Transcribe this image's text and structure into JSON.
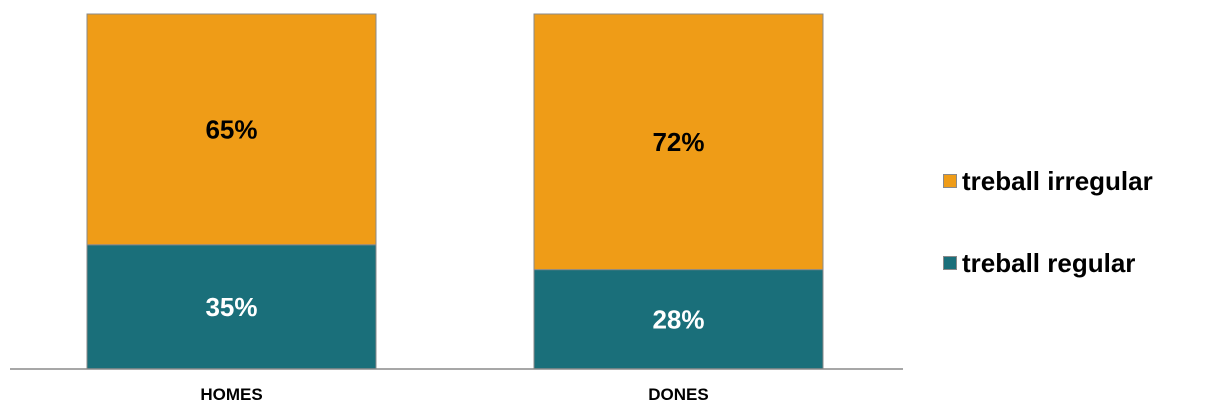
{
  "chart_data": {
    "type": "bar",
    "stacked": true,
    "percent_stacked": true,
    "categories": [
      "HOMES",
      "DONES"
    ],
    "series": [
      {
        "name": "treball regular",
        "values": [
          35,
          28
        ],
        "labels": [
          "35%",
          "28%"
        ],
        "color": "#1a6f7a",
        "label_color": "#ffffff"
      },
      {
        "name": "treball irregular",
        "values": [
          65,
          72
        ],
        "labels": [
          "65%",
          "72%"
        ],
        "color": "#ef9c17",
        "label_color": "#000000"
      }
    ],
    "ylim": [
      0,
      100
    ],
    "grid": false,
    "legend_position": "right",
    "bar_edge_color": "#8a8a8a",
    "axis_color": "#8a8a8a"
  },
  "legend": {
    "items": [
      {
        "label": "treball irregular",
        "color": "#ef9c17"
      },
      {
        "label": "treball regular",
        "color": "#1a6f7a"
      }
    ]
  }
}
